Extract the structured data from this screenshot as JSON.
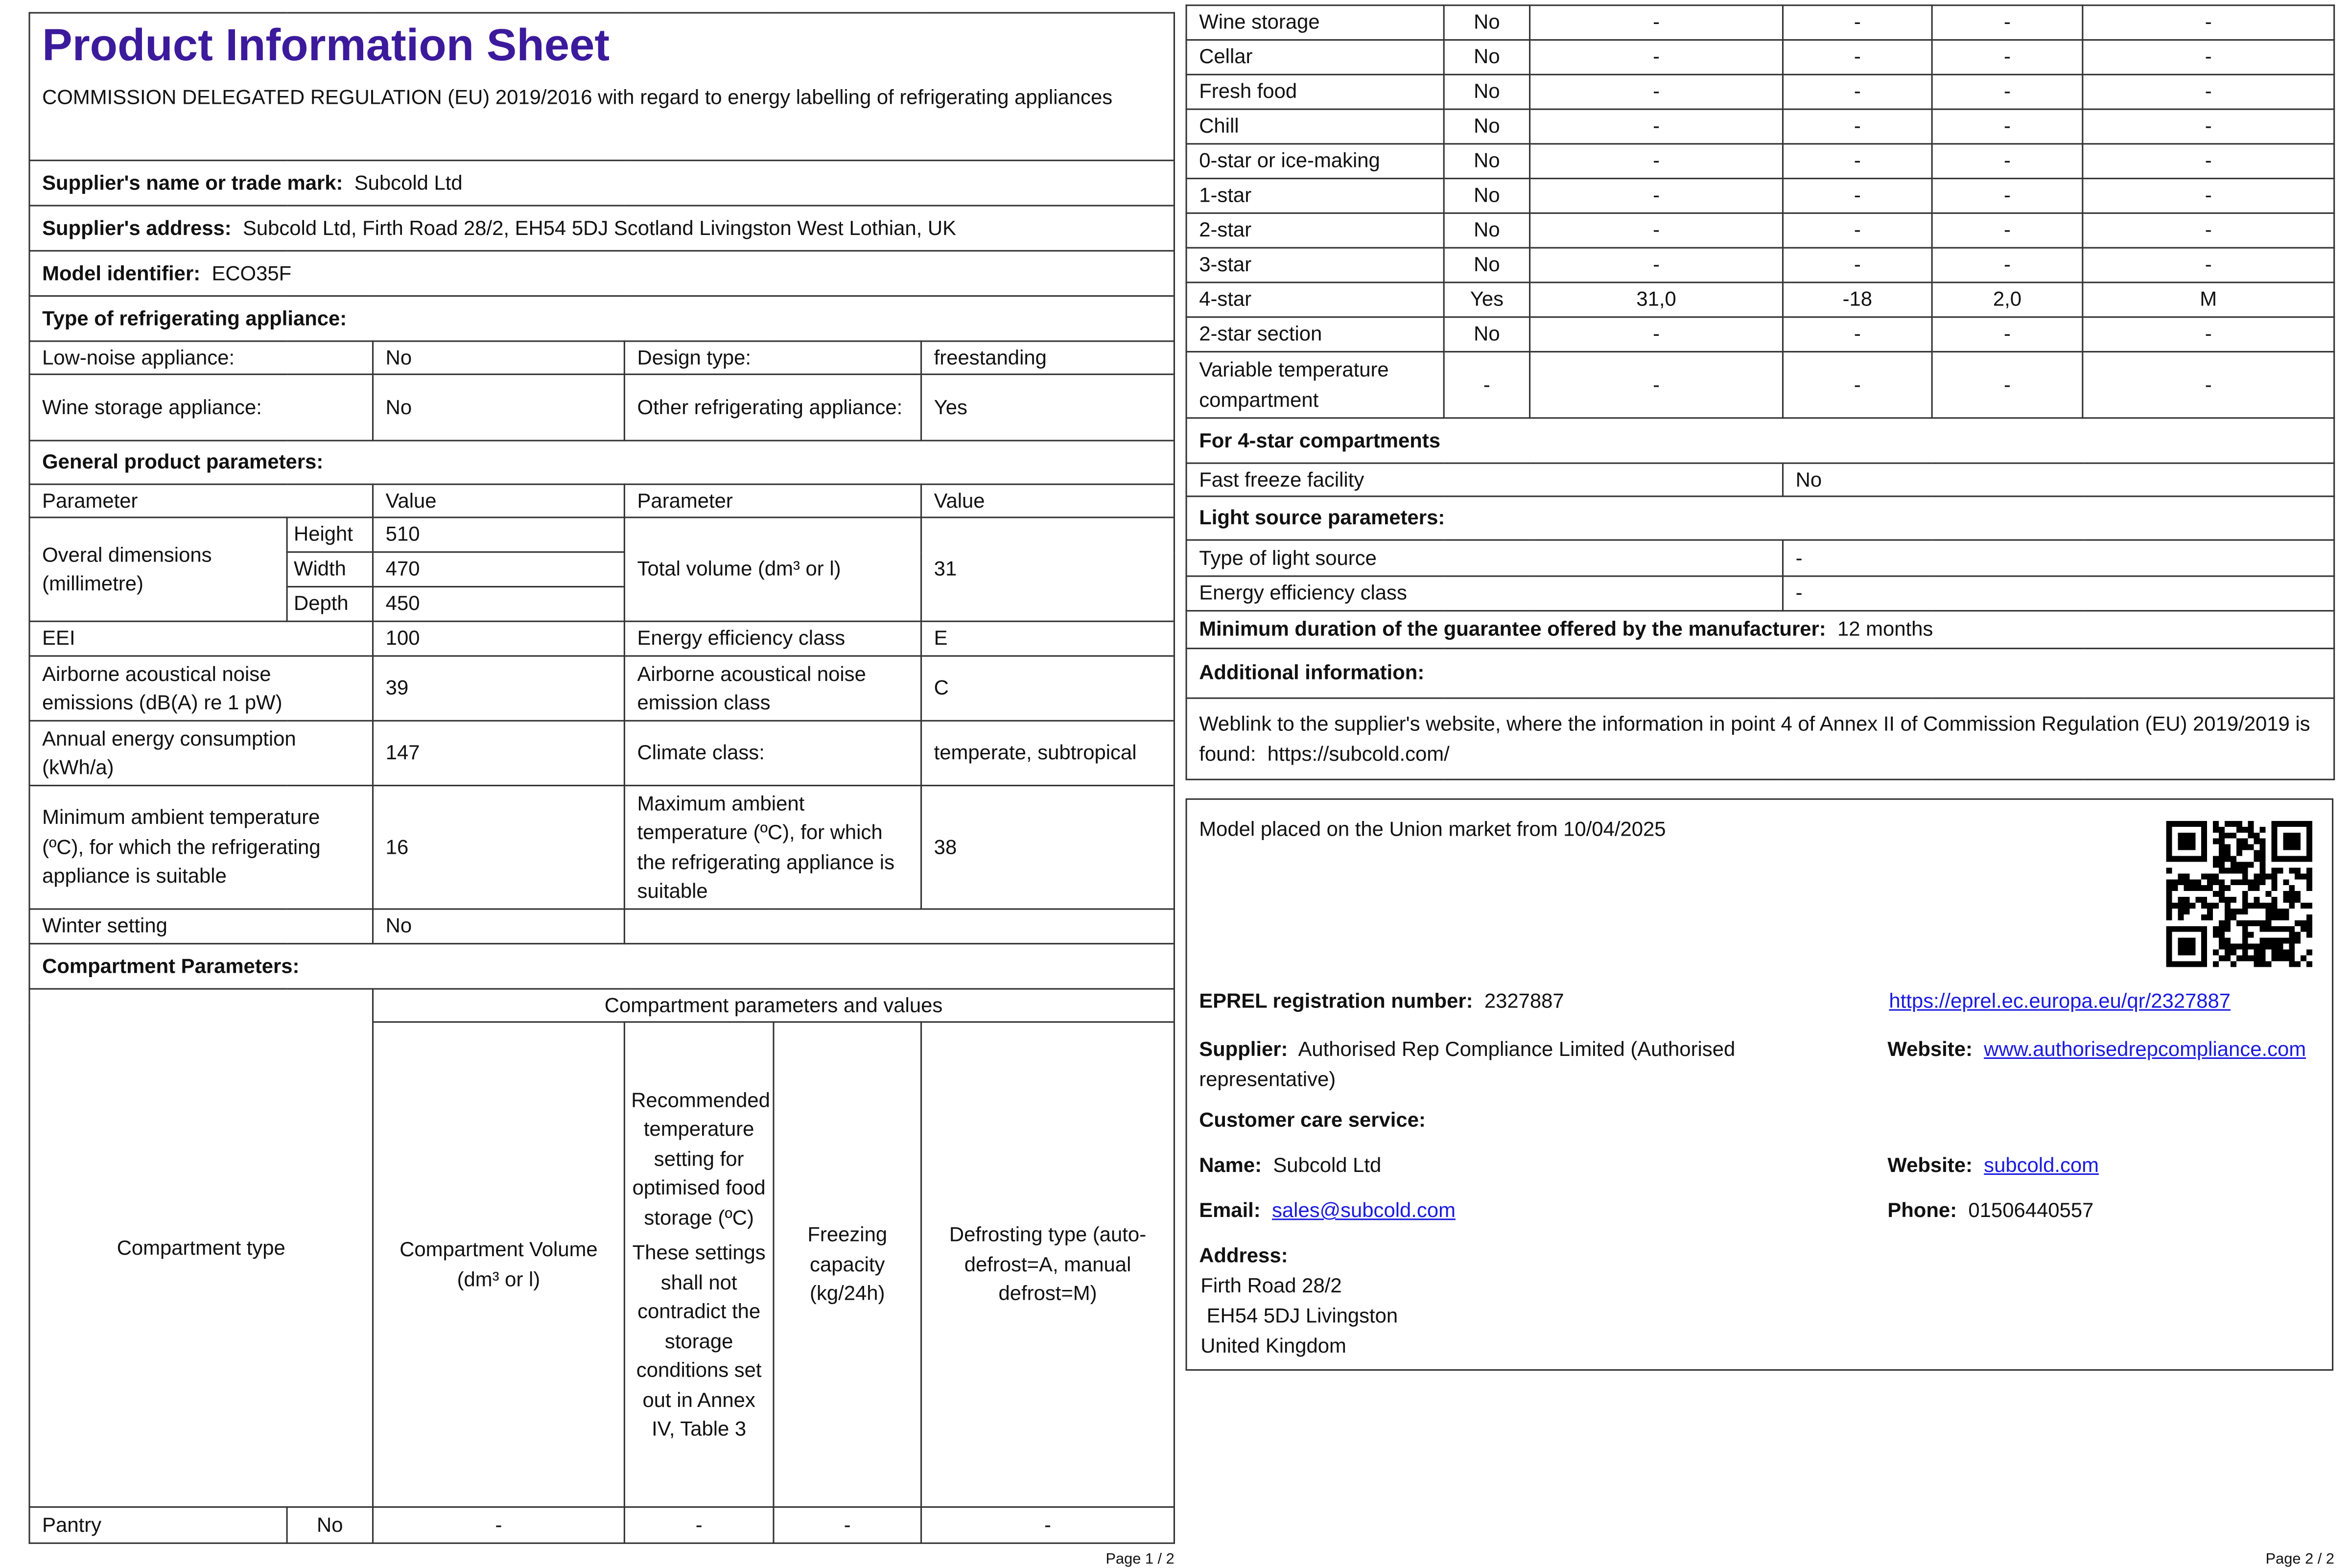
{
  "header": {
    "title": "Product Information Sheet",
    "regulation": "COMMISSION DELEGATED REGULATION (EU) 2019/2016 with regard to energy labelling of refrigerating appliances"
  },
  "supplier": {
    "name_label": "Supplier's name or trade mark:",
    "name": "Subcold Ltd",
    "address_label": "Supplier's address:",
    "address": "Subcold Ltd, Firth Road 28/2, EH54 5DJ Scotland Livingston West Lothian, UK"
  },
  "model": {
    "label": "Model identifier:",
    "value": "ECO35F"
  },
  "type": {
    "heading": "Type of refrigerating appliance:",
    "low_noise_label": "Low-noise appliance:",
    "low_noise": "No",
    "design_label": "Design type:",
    "design": "freestanding",
    "wine_label": "Wine storage appliance:",
    "wine": "No",
    "other_label": "Other refrigerating appliance:",
    "other": "Yes"
  },
  "general": {
    "heading": "General product parameters:",
    "col_param": "Parameter",
    "col_value": "Value",
    "dims_label": "Overal dimensions (millimetre)",
    "height_label": "Height",
    "height": "510",
    "width_label": "Width",
    "width": "470",
    "depth_label": "Depth",
    "depth": "450",
    "volume_label": "Total volume (dm³ or l)",
    "volume": "31",
    "eei_label": "EEI",
    "eei": "100",
    "eec_label": "Energy efficiency class",
    "eec": "E",
    "noise_label": "Airborne acoustical noise emissions (dB(A) re 1 pW)",
    "noise": "39",
    "noise_class_label": "Airborne acoustical noise emission class",
    "noise_class": "C",
    "annual_label": "Annual energy consumption (kWh/a)",
    "annual": "147",
    "climate_label": "Climate class:",
    "climate": "temperate, subtropical",
    "min_amb_label": "Minimum ambient temperature (ºC), for which the refrigerating appliance is suitable",
    "min_amb": "16",
    "max_amb_label": "Maximum ambient temperature (ºC), for which the refrigerating appliance is suitable",
    "max_amb": "38",
    "winter_label": "Winter setting",
    "winter": "No"
  },
  "compartments": {
    "heading": "Compartment Parameters:",
    "group_header": "Compartment parameters and values",
    "col_type": "Compartment type",
    "col_volume": "Compartment Volume (dm³ or l)",
    "col_temp": "Recommended temperature setting for optimised food storage (ºC)",
    "col_temp_note": "These settings shall not contradict the storage conditions set out in Annex IV, Table 3",
    "col_freeze": "Freezing capacity (kg/24h)",
    "col_defrost": "Defrosting type (auto-defrost=A, manual defrost=M)",
    "rows": [
      [
        "Pantry",
        "No",
        "-",
        "-",
        "-",
        "-"
      ],
      [
        "Wine storage",
        "No",
        "-",
        "-",
        "-",
        "-"
      ],
      [
        "Cellar",
        "No",
        "-",
        "-",
        "-",
        "-"
      ],
      [
        "Fresh food",
        "No",
        "-",
        "-",
        "-",
        "-"
      ],
      [
        "Chill",
        "No",
        "-",
        "-",
        "-",
        "-"
      ],
      [
        "0-star or ice-making",
        "No",
        "-",
        "-",
        "-",
        "-"
      ],
      [
        "1-star",
        "No",
        "-",
        "-",
        "-",
        "-"
      ],
      [
        "2-star",
        "No",
        "-",
        "-",
        "-",
        "-"
      ],
      [
        "3-star",
        "No",
        "-",
        "-",
        "-",
        "-"
      ],
      [
        "4-star",
        "Yes",
        "31,0",
        "-18",
        "2,0",
        "M"
      ],
      [
        "2-star section",
        "No",
        "-",
        "-",
        "-",
        "-"
      ],
      [
        "Variable temperature compartment",
        "-",
        "-",
        "-",
        "-",
        "-"
      ]
    ]
  },
  "four_star": {
    "heading": "For 4-star compartments",
    "fast_freeze_label": "Fast freeze facility",
    "fast_freeze": "No"
  },
  "light": {
    "heading": "Light source parameters:",
    "type_label": "Type of light source",
    "type": "-",
    "eec_label": "Energy efficiency class",
    "eec": "-"
  },
  "guarantee": {
    "label": "Minimum duration of the guarantee offered by the manufacturer:",
    "value": "12 months"
  },
  "additional": {
    "heading": "Additional information:",
    "weblink_text": "Weblink to the supplier's website, where the information in point 4 of Annex II of Commission Regulation (EU) 2019/2019 is found:",
    "weblink": "https://subcold.com/"
  },
  "eprel": {
    "placed": "Model placed on the Union market from 10/04/2025",
    "reg_label": "EPREL registration number:",
    "reg": "2327887",
    "reg_link": "https://eprel.ec.europa.eu/qr/2327887",
    "supplier_label": "Supplier:",
    "supplier": "Authorised Rep Compliance Limited (Authorised representative)",
    "website_label": "Website:",
    "website": "www.authorisedrepcompliance.com",
    "care_heading": "Customer care service:",
    "name_label": "Name:",
    "name": "Subcold Ltd",
    "care_website_label": "Website:",
    "care_website": "subcold.com",
    "email_label": "Email:",
    "email": "sales@subcold.com",
    "phone_label": "Phone:",
    "phone": "01506440557",
    "address_label": "Address:",
    "address_lines": [
      "Firth Road 28/2",
      "EH54 5DJ Livingston",
      "United Kingdom"
    ],
    "qr_icon": "qr-code-icon"
  },
  "footer": {
    "page1": "Page 1 / 2",
    "page2": "Page 2 / 2"
  },
  "colors": {
    "title": "#3c1a9c",
    "link": "#1a1add"
  }
}
